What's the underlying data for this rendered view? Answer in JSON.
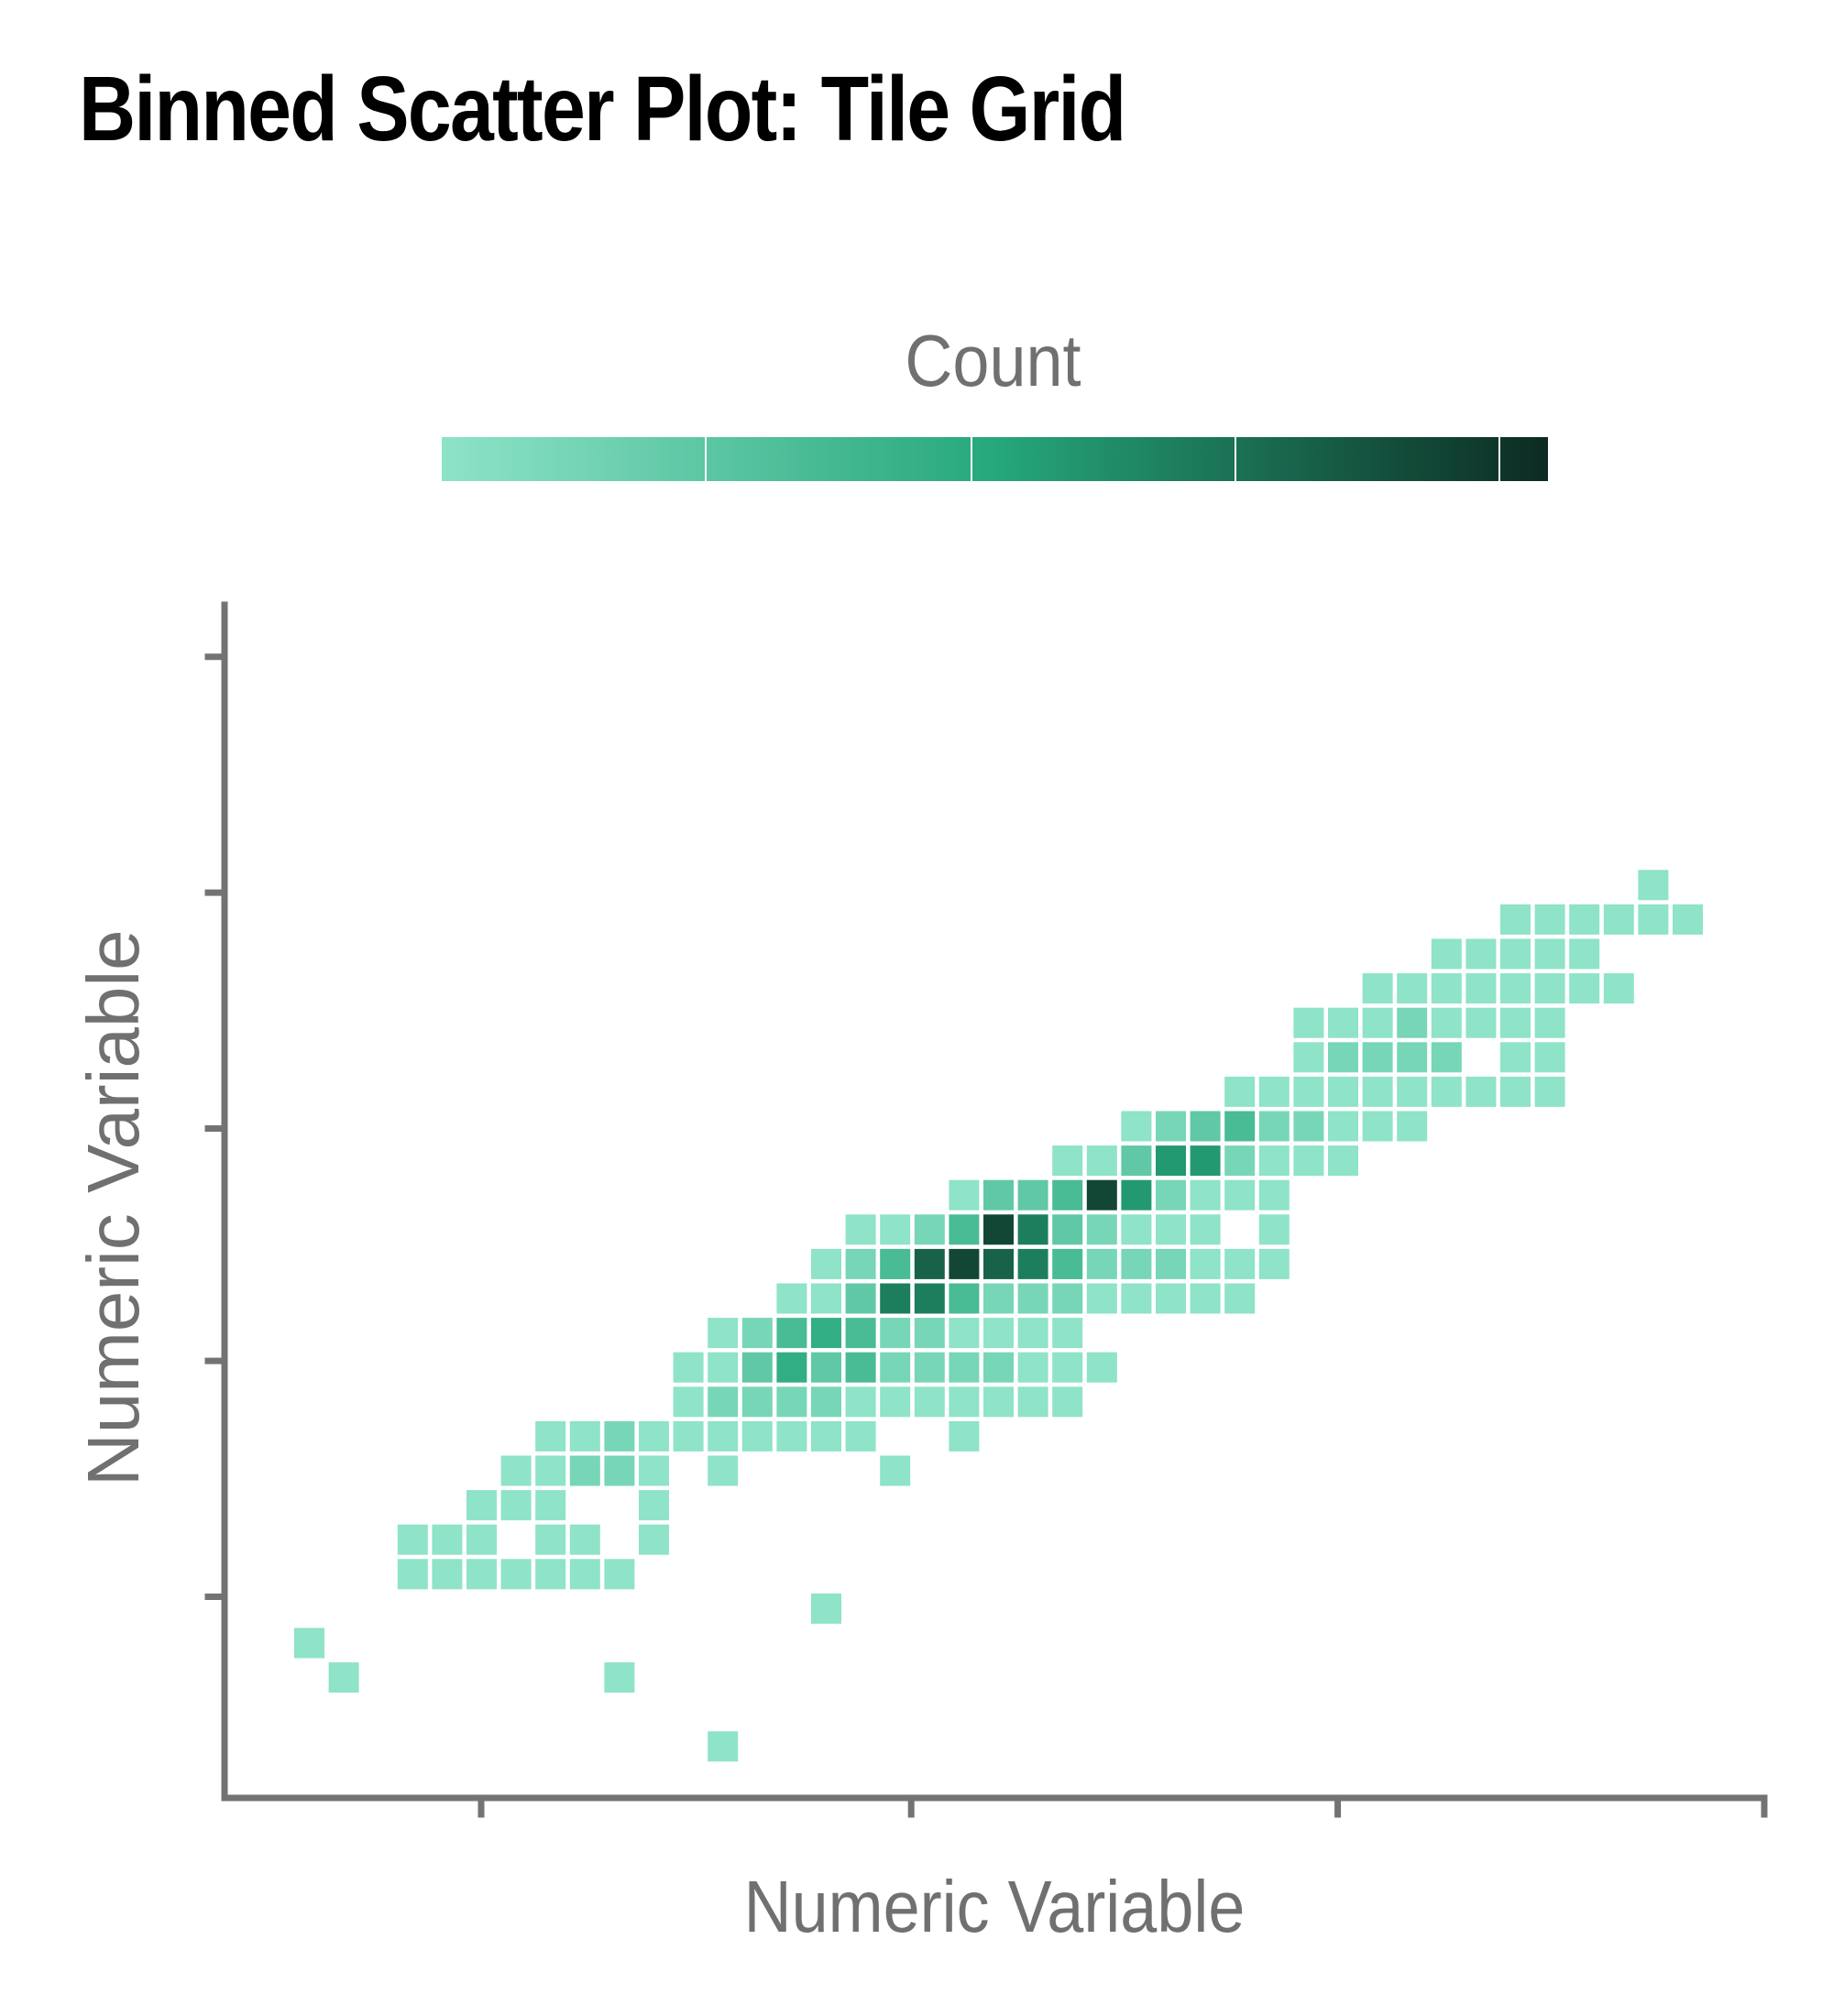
{
  "title": "Binned Scatter Plot: Tile Grid",
  "chart_data": {
    "type": "heatmap",
    "title": "Binned Scatter Plot: Tile Grid",
    "xlabel": "Numeric Variable",
    "ylabel": "Numeric Variable",
    "legend": {
      "title": "Count",
      "placement": "top",
      "colors": [
        "#8ee3c8",
        "#26a77c",
        "#0c2b22"
      ]
    },
    "grid": false,
    "xlim": [
      -0.8,
      43.6
    ],
    "ylim": [
      -1.8,
      32.6
    ],
    "x_ticks": [
      6.6,
      19.0,
      31.3,
      43.6
    ],
    "y_ticks": [
      4.0,
      10.8,
      17.5,
      24.3,
      31.1
    ],
    "max_count": 10,
    "tiles": [
      [
        2,
        4,
        1
      ],
      [
        3,
        3,
        1
      ],
      [
        14,
        1,
        1
      ],
      [
        11,
        3,
        1
      ],
      [
        17,
        5,
        1
      ],
      [
        5,
        6,
        1
      ],
      [
        6,
        6,
        1
      ],
      [
        7,
        6,
        1
      ],
      [
        8,
        6,
        1
      ],
      [
        9,
        6,
        1
      ],
      [
        10,
        6,
        1
      ],
      [
        11,
        6,
        1
      ],
      [
        5,
        7,
        1
      ],
      [
        6,
        7,
        1
      ],
      [
        7,
        7,
        1
      ],
      [
        9,
        7,
        1
      ],
      [
        10,
        7,
        1
      ],
      [
        12,
        7,
        1
      ],
      [
        7,
        8,
        1
      ],
      [
        8,
        8,
        1
      ],
      [
        9,
        8,
        1
      ],
      [
        12,
        8,
        1
      ],
      [
        8,
        9,
        1
      ],
      [
        9,
        9,
        1
      ],
      [
        10,
        9,
        2
      ],
      [
        11,
        9,
        2
      ],
      [
        12,
        9,
        1
      ],
      [
        14,
        9,
        1
      ],
      [
        19,
        9,
        1
      ],
      [
        9,
        10,
        1
      ],
      [
        10,
        10,
        1
      ],
      [
        11,
        10,
        2
      ],
      [
        12,
        10,
        1
      ],
      [
        13,
        10,
        1
      ],
      [
        14,
        10,
        1
      ],
      [
        15,
        10,
        1
      ],
      [
        16,
        10,
        1
      ],
      [
        17,
        10,
        1
      ],
      [
        18,
        10,
        1
      ],
      [
        21,
        10,
        1
      ],
      [
        13,
        11,
        1
      ],
      [
        14,
        11,
        2
      ],
      [
        15,
        11,
        2
      ],
      [
        16,
        11,
        2
      ],
      [
        17,
        11,
        2
      ],
      [
        18,
        11,
        1
      ],
      [
        19,
        11,
        1
      ],
      [
        20,
        11,
        1
      ],
      [
        21,
        11,
        1
      ],
      [
        22,
        11,
        1
      ],
      [
        23,
        11,
        1
      ],
      [
        24,
        11,
        1
      ],
      [
        13,
        12,
        1
      ],
      [
        14,
        12,
        1
      ],
      [
        15,
        12,
        3
      ],
      [
        16,
        12,
        5
      ],
      [
        17,
        12,
        3
      ],
      [
        18,
        12,
        4
      ],
      [
        19,
        12,
        2
      ],
      [
        20,
        12,
        2
      ],
      [
        21,
        12,
        2
      ],
      [
        22,
        12,
        2
      ],
      [
        23,
        12,
        1
      ],
      [
        24,
        12,
        1
      ],
      [
        25,
        12,
        1
      ],
      [
        14,
        13,
        1
      ],
      [
        15,
        13,
        2
      ],
      [
        16,
        13,
        4
      ],
      [
        17,
        13,
        5
      ],
      [
        18,
        13,
        4
      ],
      [
        19,
        13,
        2
      ],
      [
        20,
        13,
        2
      ],
      [
        21,
        13,
        1
      ],
      [
        22,
        13,
        1
      ],
      [
        23,
        13,
        1
      ],
      [
        24,
        13,
        1
      ],
      [
        16,
        14,
        1
      ],
      [
        17,
        14,
        1
      ],
      [
        18,
        14,
        3
      ],
      [
        19,
        14,
        7
      ],
      [
        20,
        14,
        7
      ],
      [
        21,
        14,
        4
      ],
      [
        22,
        14,
        2
      ],
      [
        23,
        14,
        2
      ],
      [
        24,
        14,
        2
      ],
      [
        25,
        14,
        1
      ],
      [
        26,
        14,
        1
      ],
      [
        27,
        14,
        1
      ],
      [
        28,
        14,
        1
      ],
      [
        29,
        14,
        1
      ],
      [
        17,
        15,
        1
      ],
      [
        18,
        15,
        2
      ],
      [
        19,
        15,
        4
      ],
      [
        20,
        15,
        8
      ],
      [
        21,
        15,
        9
      ],
      [
        22,
        15,
        8
      ],
      [
        23,
        15,
        7
      ],
      [
        24,
        15,
        4
      ],
      [
        25,
        15,
        2
      ],
      [
        26,
        15,
        2
      ],
      [
        27,
        15,
        2
      ],
      [
        28,
        15,
        1
      ],
      [
        29,
        15,
        1
      ],
      [
        30,
        15,
        1
      ],
      [
        18,
        16,
        1
      ],
      [
        19,
        16,
        1
      ],
      [
        20,
        16,
        2
      ],
      [
        21,
        16,
        4
      ],
      [
        22,
        16,
        9
      ],
      [
        23,
        16,
        7
      ],
      [
        24,
        16,
        3
      ],
      [
        25,
        16,
        2
      ],
      [
        26,
        16,
        1
      ],
      [
        27,
        16,
        1
      ],
      [
        28,
        16,
        1
      ],
      [
        30,
        16,
        1
      ],
      [
        21,
        17,
        1
      ],
      [
        22,
        17,
        3
      ],
      [
        23,
        17,
        3
      ],
      [
        24,
        17,
        4
      ],
      [
        25,
        17,
        9
      ],
      [
        26,
        17,
        6
      ],
      [
        27,
        17,
        2
      ],
      [
        28,
        17,
        1
      ],
      [
        29,
        17,
        1
      ],
      [
        30,
        17,
        1
      ],
      [
        24,
        18,
        1
      ],
      [
        25,
        18,
        1
      ],
      [
        26,
        18,
        3
      ],
      [
        27,
        18,
        6
      ],
      [
        28,
        18,
        6
      ],
      [
        29,
        18,
        2
      ],
      [
        30,
        18,
        1
      ],
      [
        31,
        18,
        1
      ],
      [
        32,
        18,
        1
      ],
      [
        26,
        19,
        1
      ],
      [
        27,
        19,
        2
      ],
      [
        28,
        19,
        3
      ],
      [
        29,
        19,
        4
      ],
      [
        30,
        19,
        2
      ],
      [
        31,
        19,
        2
      ],
      [
        32,
        19,
        1
      ],
      [
        33,
        19,
        1
      ],
      [
        34,
        19,
        1
      ],
      [
        29,
        20,
        1
      ],
      [
        30,
        20,
        1
      ],
      [
        31,
        20,
        1
      ],
      [
        32,
        20,
        1
      ],
      [
        33,
        20,
        1
      ],
      [
        34,
        20,
        1
      ],
      [
        35,
        20,
        1
      ],
      [
        36,
        20,
        1
      ],
      [
        37,
        20,
        1
      ],
      [
        38,
        20,
        1
      ],
      [
        31,
        21,
        1
      ],
      [
        32,
        21,
        2
      ],
      [
        33,
        21,
        2
      ],
      [
        34,
        21,
        2
      ],
      [
        35,
        21,
        2
      ],
      [
        37,
        21,
        1
      ],
      [
        38,
        21,
        1
      ],
      [
        31,
        22,
        1
      ],
      [
        32,
        22,
        1
      ],
      [
        33,
        22,
        1
      ],
      [
        34,
        22,
        2
      ],
      [
        35,
        22,
        1
      ],
      [
        36,
        22,
        1
      ],
      [
        37,
        22,
        1
      ],
      [
        38,
        22,
        1
      ],
      [
        33,
        23,
        1
      ],
      [
        34,
        23,
        1
      ],
      [
        35,
        23,
        1
      ],
      [
        36,
        23,
        1
      ],
      [
        37,
        23,
        1
      ],
      [
        38,
        23,
        1
      ],
      [
        39,
        23,
        1
      ],
      [
        40,
        23,
        1
      ],
      [
        35,
        24,
        1
      ],
      [
        36,
        24,
        1
      ],
      [
        37,
        24,
        1
      ],
      [
        38,
        24,
        1
      ],
      [
        39,
        24,
        1
      ],
      [
        37,
        25,
        1
      ],
      [
        38,
        25,
        1
      ],
      [
        39,
        25,
        1
      ],
      [
        40,
        25,
        1
      ],
      [
        41,
        25,
        1
      ],
      [
        42,
        25,
        1
      ],
      [
        41,
        26,
        1
      ],
      [
        48,
        30,
        1
      ],
      [
        48,
        31,
        1
      ]
    ]
  }
}
